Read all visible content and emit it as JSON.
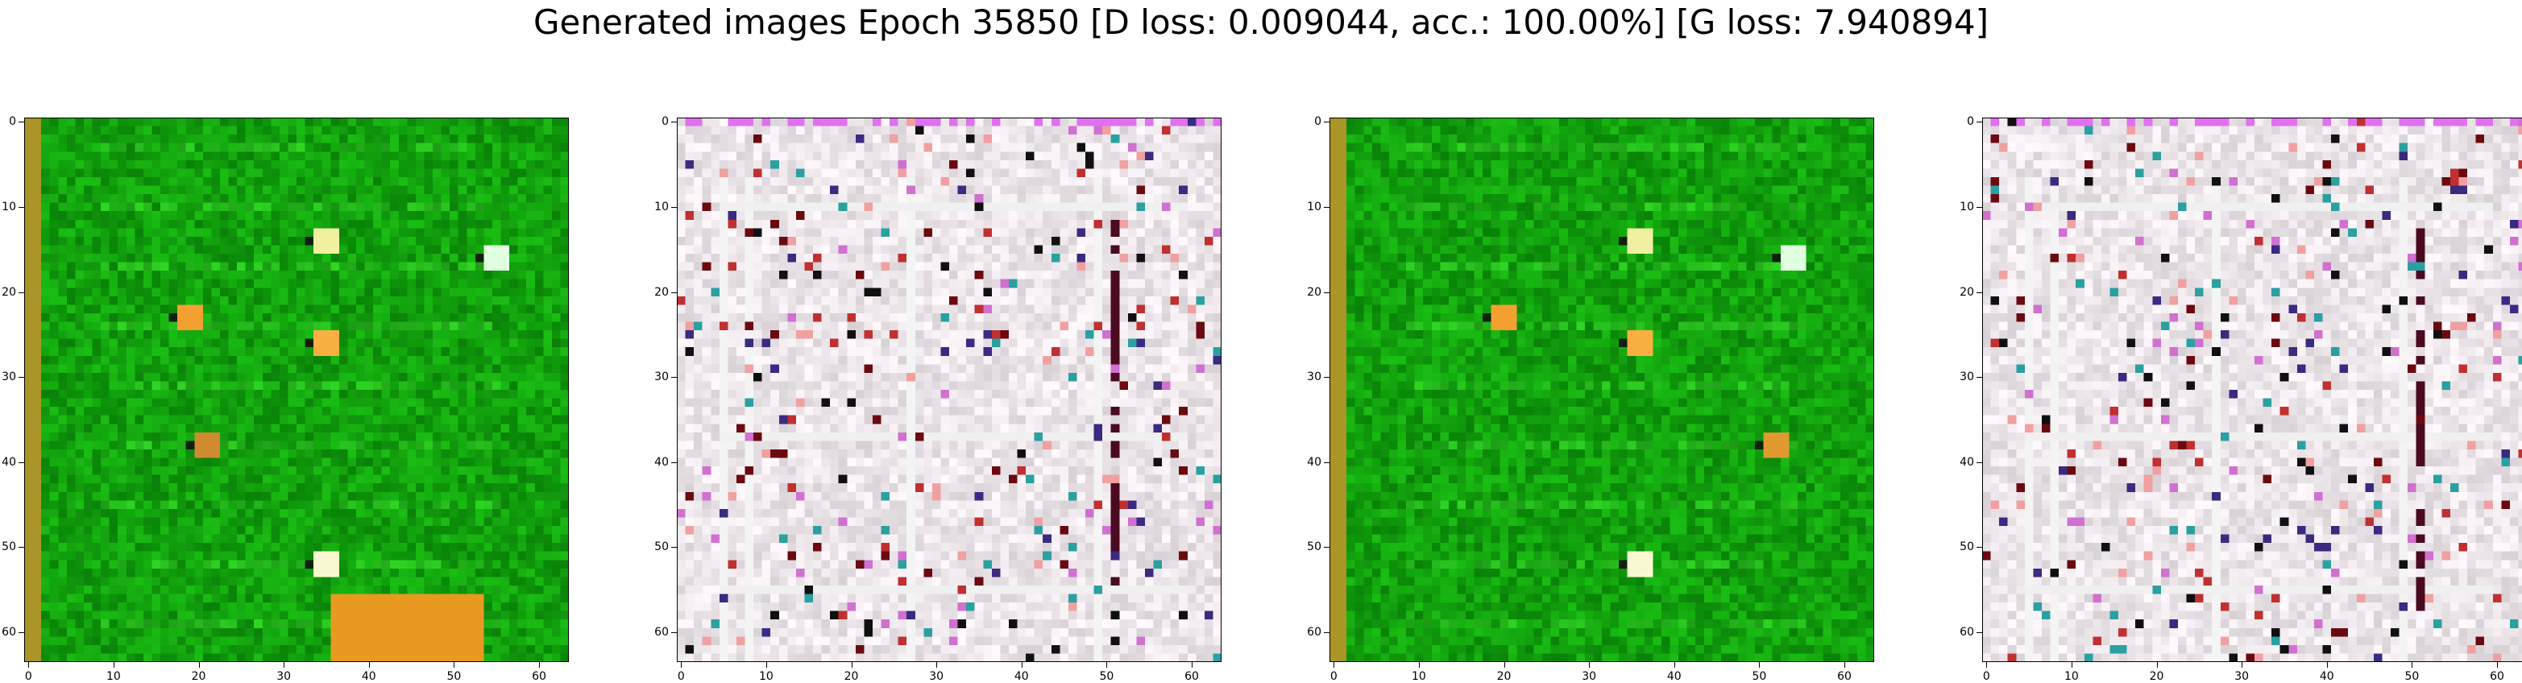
{
  "figure": {
    "title": "Generated images Epoch 35850 [D loss: 0.009044, acc.: 100.00%] [G loss: 7.940894]"
  },
  "axes": {
    "x_ticks": [
      "0",
      "10",
      "20",
      "30",
      "40",
      "50",
      "60"
    ],
    "y_ticks": [
      "0",
      "10",
      "20",
      "30",
      "40",
      "50",
      "60"
    ],
    "image_size": 64
  },
  "panels": [
    {
      "id": "sample-1",
      "style": "green",
      "dominant_color": "#12a00e"
    },
    {
      "id": "sample-2",
      "style": "grid",
      "dominant_color": "#ece6ea"
    },
    {
      "id": "sample-3",
      "style": "green",
      "dominant_color": "#12a00e"
    },
    {
      "id": "sample-4",
      "style": "grid",
      "dominant_color": "#ece6ea"
    }
  ]
}
